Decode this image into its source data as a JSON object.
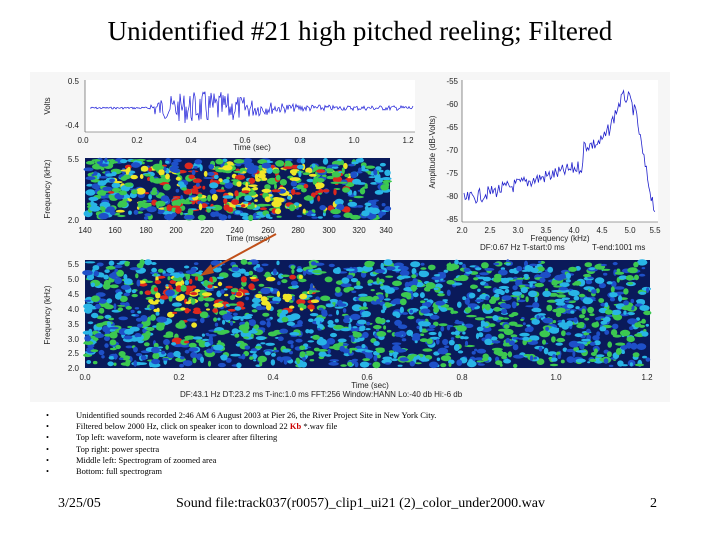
{
  "slide": {
    "title": "Unidentified #21 high pitched reeling; Filtered",
    "date": "3/25/05",
    "footer_center": "Sound file:track037(r0057)_clip1_ui21 (2)_color_under2000.wav",
    "page_number": "2"
  },
  "bullets": [
    {
      "text": "Unidentified sounds recorded 2:46 AM 6 August 2003 at Pier 26, the River Project Site in New York City."
    },
    {
      "pre": "Filtered below 2000 Hz, click on speaker icon to download 22 ",
      "kb": "Kb",
      "post": " *.wav file"
    },
    {
      "text": "Top left: waveform, note waveform is clearer after filtering"
    },
    {
      "text": "Top right: power spectra"
    },
    {
      "text": "Middle left: Spectrogram of zoomed area"
    },
    {
      "text": "Bottom: full spectrogram"
    }
  ],
  "waveform": {
    "ylabel": "Volts",
    "xlabel": "Time (sec)",
    "yticks": [
      "0.5",
      "-0.4"
    ],
    "xticks": [
      "0.0",
      "0.2",
      "0.4",
      "0.6",
      "0.8",
      "1.0",
      "1.2"
    ]
  },
  "spectrum": {
    "ylabel": "Amplitude (dB-Volts)",
    "xlabel": "Frequency (kHz)",
    "yticks": [
      "-55",
      "-60",
      "-65",
      "-70",
      "-75",
      "-80",
      "-85"
    ],
    "xticks": [
      "2.0",
      "2.5",
      "3.0",
      "3.5",
      "4.0",
      "4.5",
      "5.0",
      "5.5"
    ],
    "info1": "DF:0.67 Hz   T-start:0 ms",
    "info2": "T-end:1001 ms"
  },
  "zoom_spectrogram": {
    "ylabel": "Frequency (kHz)",
    "xlabel": "Time (msec)",
    "yticks": [
      "5.5",
      "2.0"
    ],
    "xticks": [
      "140",
      "160",
      "180",
      "200",
      "220",
      "240",
      "260",
      "280",
      "300",
      "320",
      "340"
    ]
  },
  "full_spectrogram": {
    "ylabel": "Frequency (kHz)",
    "xlabel": "Time (sec)",
    "yticks": [
      "5.5",
      "5.0",
      "4.5",
      "4.0",
      "3.5",
      "3.0",
      "2.5",
      "2.0"
    ],
    "xticks": [
      "0.0",
      "0.2",
      "0.4",
      "0.6",
      "0.8",
      "1.0",
      "1.2"
    ],
    "info": "DF:43.1 Hz    DT:23.2 ms    T-inc:1.0 ms    FFT:256    Window:HANN    Lo:-40 db    Hi:-6 db"
  },
  "colors": {
    "waveform_line": "#1a1ad8",
    "spectrum_line": "#2222cc",
    "arrow": "#c0501a",
    "spec_dark": "#0a1a5a",
    "spec_blue": "#1e50c8",
    "spec_cyan": "#28b4e6",
    "spec_green": "#3cc850",
    "spec_yellow": "#f0e628",
    "spec_red": "#dc281e"
  }
}
